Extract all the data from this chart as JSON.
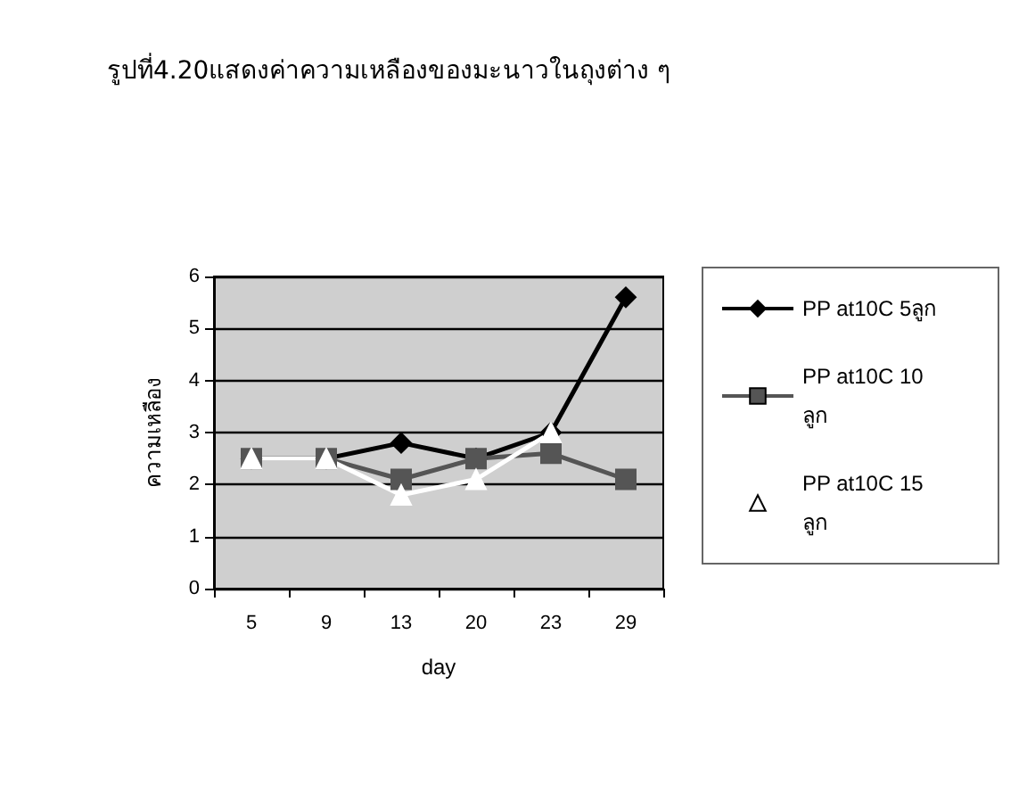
{
  "chart_data": {
    "type": "line",
    "title": "รูปที่4.20แสดงค่าความเหลืองของมะนาวในถุงต่าง ๆ",
    "xlabel": "day",
    "ylabel": "ความเหลือง",
    "categories": [
      "5",
      "9",
      "13",
      "20",
      "23",
      "29"
    ],
    "series": [
      {
        "name": "PP at10C 5ลูก",
        "color": "#000000",
        "marker": "diamond",
        "values": [
          2.5,
          2.5,
          2.8,
          2.5,
          3.0,
          5.6
        ]
      },
      {
        "name": "PP at10C 10 ลูก",
        "color": "#555555",
        "marker": "square",
        "values": [
          2.5,
          2.5,
          2.1,
          2.5,
          2.6,
          2.1
        ]
      },
      {
        "name": "PP at10C 15 ลูก",
        "color": "#ffffff",
        "marker": "triangle",
        "values": [
          2.5,
          2.5,
          1.8,
          2.1,
          3.0,
          null
        ]
      }
    ],
    "ylim": [
      0,
      6
    ],
    "yticks": [
      0,
      1,
      2,
      3,
      4,
      5,
      6
    ],
    "grid": "y",
    "legend": "right"
  }
}
